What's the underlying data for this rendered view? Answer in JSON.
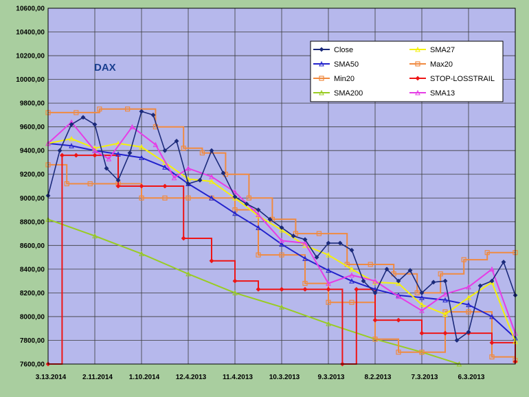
{
  "chart_data": {
    "type": "line",
    "title": "DAX",
    "xlabel": "",
    "ylabel": "",
    "ylim": [
      7600,
      10600
    ],
    "y_ticks": [
      "10600,00",
      "10400,00",
      "10200,00",
      "10000,00",
      "9800,00",
      "9600,00",
      "9400,00",
      "9200,00",
      "9000,00",
      "8800,00",
      "8600,00",
      "8400,00",
      "8200,00",
      "8000,00",
      "7800,00",
      "7600,00"
    ],
    "x_ticks": [
      "3.13.2014",
      "2.11.2014",
      "1.10.2014",
      "12.4.2013",
      "11.4.2013",
      "10.3.2013",
      "9.3.2013",
      "8.2.2013",
      "7.3.2013",
      "6.3.2013"
    ],
    "x_range": [
      0,
      10
    ],
    "grid": true,
    "legend_position": "top-right",
    "colors": {
      "plot_background": "#b6b8ec",
      "page_background": "#a9ce9f",
      "grid": "#3a3a3a"
    },
    "series": [
      {
        "name": "Close",
        "color": "#1b2a7a",
        "marker": "diamond",
        "line": true,
        "x": [
          0.0,
          0.25,
          0.5,
          0.75,
          1.0,
          1.25,
          1.5,
          1.75,
          2.0,
          2.25,
          2.5,
          2.75,
          3.0,
          3.25,
          3.5,
          3.75,
          4.0,
          4.25,
          4.5,
          4.75,
          5.0,
          5.25,
          5.5,
          5.75,
          6.0,
          6.25,
          6.5,
          6.75,
          7.0,
          7.25,
          7.5,
          7.75,
          8.0,
          8.25,
          8.5,
          8.75,
          9.0,
          9.25,
          9.5,
          9.75,
          10.0
        ],
        "y": [
          9020,
          9400,
          9620,
          9680,
          9620,
          9250,
          9150,
          9380,
          9730,
          9700,
          9400,
          9480,
          9120,
          9150,
          9400,
          9210,
          9010,
          8950,
          8900,
          8820,
          8750,
          8680,
          8650,
          8500,
          8620,
          8620,
          8560,
          8300,
          8200,
          8400,
          8300,
          8390,
          8200,
          8290,
          8300,
          7800,
          7870,
          8260,
          8300,
          8460,
          8180
        ]
      },
      {
        "name": "SMA27",
        "color": "#f5f20a",
        "marker": "triangle",
        "line": true,
        "x": [
          0.0,
          0.5,
          1.0,
          1.5,
          2.0,
          2.5,
          3.0,
          3.5,
          4.0,
          4.5,
          5.0,
          5.5,
          6.0,
          6.5,
          7.0,
          7.5,
          8.0,
          8.5,
          9.0,
          9.5,
          10.0
        ],
        "y": [
          9460,
          9500,
          9420,
          9460,
          9430,
          9300,
          9160,
          9140,
          9000,
          8850,
          8730,
          8600,
          8520,
          8400,
          8290,
          8280,
          8100,
          8020,
          8160,
          8290,
          7790
        ]
      },
      {
        "name": "SMA50",
        "color": "#2222cc",
        "marker": "triangle",
        "line": true,
        "x": [
          0.0,
          0.5,
          1.0,
          1.5,
          2.0,
          2.5,
          3.0,
          3.5,
          4.0,
          4.5,
          5.0,
          5.5,
          6.0,
          6.5,
          7.0,
          7.5,
          8.0,
          8.5,
          9.0,
          9.5,
          10.0
        ],
        "y": [
          9460,
          9440,
          9400,
          9370,
          9340,
          9260,
          9120,
          9000,
          8870,
          8750,
          8610,
          8490,
          8390,
          8300,
          8230,
          8180,
          8160,
          8140,
          8100,
          8000,
          7820
        ]
      },
      {
        "name": "Max20",
        "color": "#f08a40",
        "marker": "square",
        "line": true,
        "step": true,
        "x": [
          0.0,
          0.6,
          1.1,
          1.7,
          2.3,
          2.9,
          3.3,
          3.8,
          4.3,
          4.8,
          5.3,
          5.8,
          6.4,
          6.9,
          7.4,
          7.9,
          8.4,
          8.9,
          9.4,
          10.0
        ],
        "y": [
          9720,
          9720,
          9750,
          9750,
          9600,
          9420,
          9380,
          9200,
          9000,
          8820,
          8700,
          8700,
          8440,
          8440,
          8360,
          8200,
          8360,
          8480,
          8540,
          8540
        ]
      },
      {
        "name": "Min20",
        "color": "#f08a40",
        "marker": "square",
        "line": true,
        "step": true,
        "x": [
          0.0,
          0.4,
          0.9,
          1.5,
          2.0,
          2.5,
          3.0,
          3.5,
          4.0,
          4.5,
          5.0,
          5.5,
          6.0,
          6.5,
          7.0,
          7.5,
          8.0,
          8.5,
          9.0,
          9.5,
          10.0
        ],
        "y": [
          9280,
          9120,
          9120,
          9120,
          9000,
          9000,
          9000,
          9000,
          8900,
          8520,
          8520,
          8280,
          8120,
          8120,
          7810,
          7700,
          7700,
          8040,
          8040,
          7660,
          7630
        ]
      },
      {
        "name": "STOP-LOSSTRAIL",
        "color": "#ee1515",
        "marker": "diamond",
        "line": true,
        "step": true,
        "x": [
          0.0,
          0.3,
          0.6,
          1.0,
          1.5,
          2.0,
          2.5,
          2.9,
          3.5,
          4.0,
          4.5,
          5.0,
          5.5,
          6.0,
          6.3,
          6.6,
          7.0,
          7.5,
          8.0,
          8.5,
          9.0,
          9.5,
          10.0
        ],
        "y": [
          7600,
          9360,
          9360,
          9360,
          9100,
          9100,
          9100,
          8660,
          8470,
          8300,
          8230,
          8230,
          8230,
          8230,
          7600,
          8230,
          7970,
          7970,
          7860,
          7860,
          7860,
          7780,
          7620
        ]
      },
      {
        "name": "SMA200",
        "color": "#99cc22",
        "marker": "triangle",
        "line": true,
        "x": [
          0.0,
          1.0,
          2.0,
          3.0,
          4.0,
          5.0,
          6.0,
          7.0,
          8.0,
          8.8
        ],
        "y": [
          8820,
          8680,
          8530,
          8360,
          8200,
          8080,
          7940,
          7810,
          7700,
          7600
        ]
      },
      {
        "name": "SMA13",
        "color": "#e63ce6",
        "marker": "triangle",
        "line": true,
        "x": [
          0.0,
          0.5,
          1.0,
          1.3,
          1.8,
          2.3,
          2.7,
          3.0,
          3.5,
          4.0,
          4.5,
          5.0,
          5.5,
          6.0,
          6.5,
          7.0,
          7.5,
          8.0,
          8.5,
          9.0,
          9.5,
          10.0
        ],
        "y": [
          9460,
          9640,
          9400,
          9330,
          9600,
          9450,
          9170,
          9250,
          9180,
          9050,
          8860,
          8640,
          8620,
          8280,
          8350,
          8300,
          8170,
          8050,
          8190,
          8250,
          8400,
          7860
        ]
      }
    ]
  }
}
